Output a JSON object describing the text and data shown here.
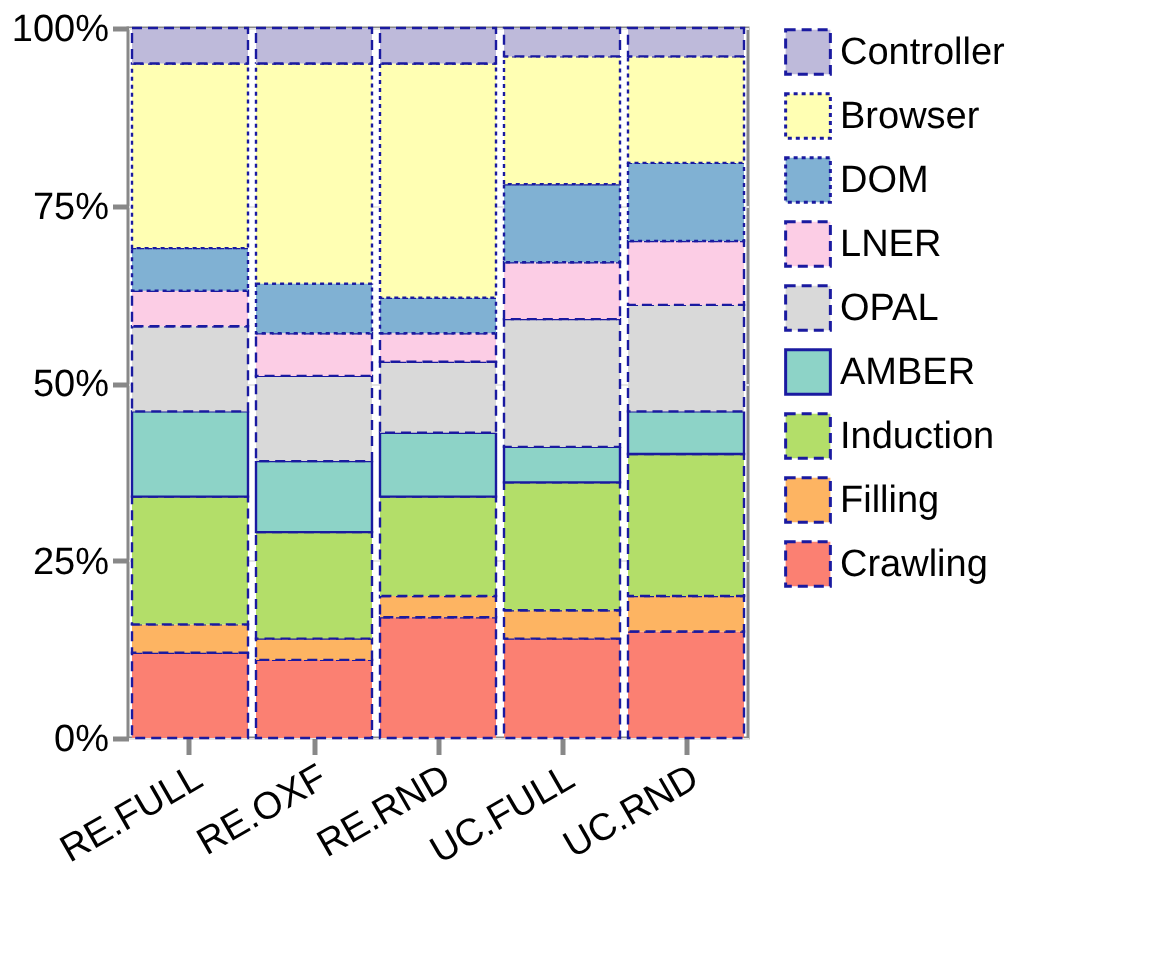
{
  "chart_data": {
    "type": "bar",
    "stacked": true,
    "categories": [
      "RE.FULL",
      "RE.OXF",
      "RE.RND",
      "UC.FULL",
      "UC.RND"
    ],
    "series": [
      {
        "name": "Crawling",
        "color": "#fb8072",
        "line_style": "dashed",
        "values": [
          12,
          11,
          17,
          14,
          15
        ]
      },
      {
        "name": "Filling",
        "color": "#fdb462",
        "line_style": "dashed",
        "values": [
          4,
          3,
          3,
          4,
          5
        ]
      },
      {
        "name": "Induction",
        "color": "#b3de69",
        "line_style": "dashed",
        "values": [
          18,
          15,
          14,
          18,
          20
        ]
      },
      {
        "name": "AMBER",
        "color": "#8dd3c7",
        "line_style": "solid",
        "values": [
          12,
          10,
          9,
          5,
          6
        ]
      },
      {
        "name": "OPAL",
        "color": "#d9d9d9",
        "line_style": "dashed",
        "values": [
          12,
          12,
          10,
          18,
          15
        ]
      },
      {
        "name": "LNER",
        "color": "#fccde5",
        "line_style": "dashed",
        "values": [
          5,
          6,
          4,
          8,
          9
        ]
      },
      {
        "name": "DOM",
        "color": "#80b1d3",
        "line_style": "dotted",
        "values": [
          6,
          7,
          5,
          11,
          11
        ]
      },
      {
        "name": "Browser",
        "color": "#ffffb3",
        "line_style": "dotted",
        "values": [
          26,
          31,
          33,
          18,
          15
        ]
      },
      {
        "name": "Controller",
        "color": "#bebada",
        "line_style": "dashed",
        "values": [
          5,
          5,
          5,
          4,
          4
        ]
      }
    ],
    "ylim": [
      0,
      100
    ],
    "yticks": [
      {
        "value": 0,
        "label": "0%"
      },
      {
        "value": 25,
        "label": "25%"
      },
      {
        "value": 50,
        "label": "50%"
      },
      {
        "value": 75,
        "label": "75%"
      },
      {
        "value": 100,
        "label": "100%"
      }
    ],
    "grid": true,
    "legend": "right"
  }
}
